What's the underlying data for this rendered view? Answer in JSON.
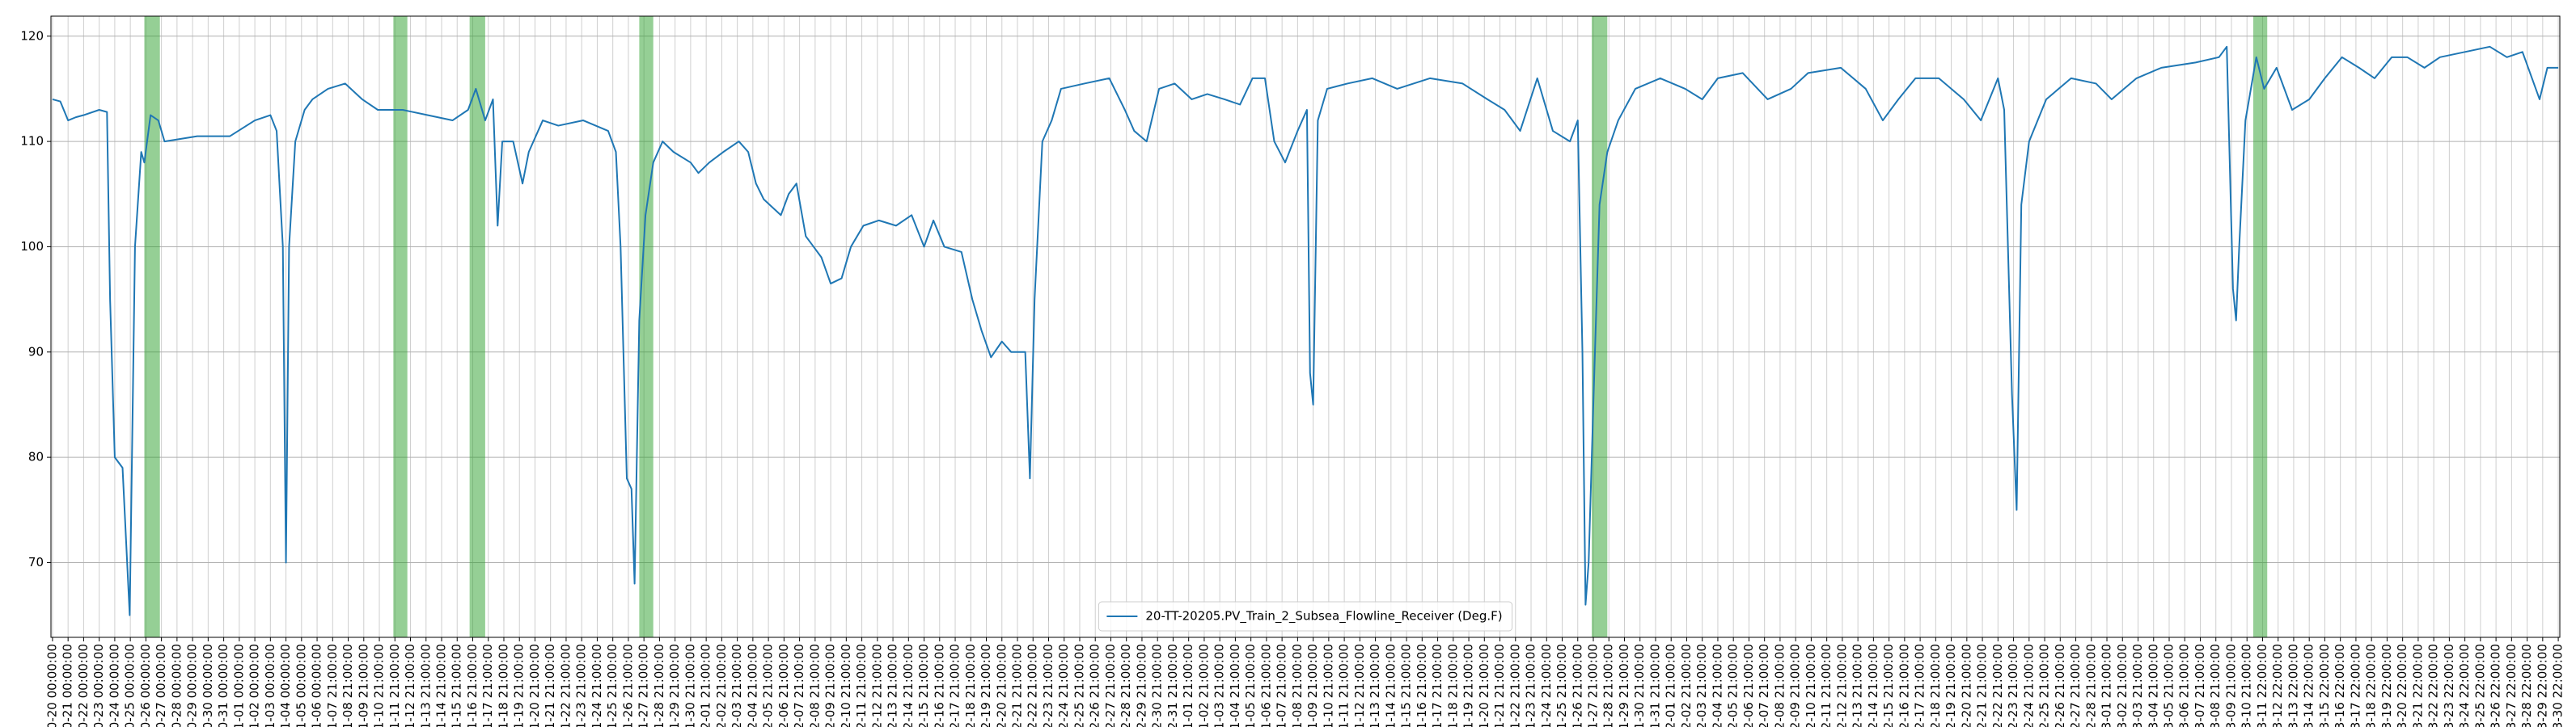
{
  "chart_data": {
    "type": "line",
    "series": [
      {
        "name": "20-TT-20205.PV_Train_2_Subsea_Flowline_Receiver (Deg.F)",
        "color": "#1f77b4",
        "x": [
          0,
          0.5,
          1,
          1.5,
          2,
          3,
          3.5,
          3.7,
          4.0,
          4.5,
          4.96,
          5.3,
          5.7,
          5.9,
          6.3,
          6.8,
          7.2,
          9.3,
          11.4,
          13,
          14,
          14.4,
          14.8,
          15.0,
          15.2,
          15.6,
          16.2,
          16.7,
          17.7,
          18.8,
          19.9,
          20.9,
          22.5,
          24.1,
          25.7,
          26.7,
          27.2,
          27.8,
          28.3,
          28.6,
          28.9,
          29.6,
          30.2,
          30.6,
          31.5,
          32.5,
          34.1,
          35.7,
          36.2,
          36.5,
          36.9,
          37.2,
          37.4,
          37.7,
          38.1,
          38.6,
          39.2,
          39.9,
          41,
          41.5,
          42.2,
          43.1,
          44.1,
          44.7,
          45.2,
          45.7,
          46.8,
          47.3,
          47.8,
          48.4,
          48.9,
          49.4,
          50,
          50.7,
          51.3,
          52.1,
          53.1,
          54.2,
          55.2,
          56,
          56.6,
          57.3,
          58.4,
          59.1,
          59.7,
          60.3,
          61,
          61.6,
          62.1,
          62.5,
          62.8,
          63.1,
          63.6,
          64.2,
          64.8,
          66.3,
          67.9,
          68.9,
          69.5,
          70.3,
          71.1,
          72.1,
          73.2,
          74.2,
          75.3,
          76.3,
          77.1,
          77.9,
          78.5,
          79.2,
          80,
          80.6,
          80.8,
          81,
          81.3,
          81.9,
          83.2,
          84.8,
          86.4,
          88.5,
          90.6,
          92.2,
          93.3,
          94.3,
          95.4,
          96.4,
          97.5,
          98,
          98.3,
          98.5,
          98.7,
          99,
          99.4,
          99.9,
          100.6,
          101.7,
          103.3,
          104.9,
          106,
          107,
          108.6,
          110.2,
          111.7,
          112.8,
          114.9,
          116.5,
          117.6,
          118.6,
          119.7,
          121.2,
          122.8,
          123.9,
          125,
          125.4,
          125.9,
          126.2,
          126.5,
          127,
          128.1,
          129.7,
          131.3,
          132.3,
          133.9,
          135.5,
          137.7,
          139.2,
          139.7,
          140.1,
          140.3,
          140.5,
          140.9,
          141.6,
          142.1,
          142.9,
          143.9,
          145,
          146,
          147.1,
          148.2,
          149.2,
          150.3,
          151.3,
          152.4,
          153.4,
          155,
          156.6,
          157.7,
          158.7,
          159.8,
          160.3,
          161
        ],
        "values": [
          114,
          113.8,
          112,
          112.3,
          112.5,
          113,
          112.8,
          95,
          80,
          79,
          65,
          100,
          109,
          108,
          112.5,
          112,
          110,
          110.5,
          110.5,
          112,
          112.5,
          111,
          100,
          70,
          100,
          110,
          113,
          114,
          115,
          115.5,
          114,
          113,
          113,
          112.5,
          112,
          113,
          115,
          112,
          114,
          102,
          110,
          110,
          106,
          109,
          112,
          111.5,
          112,
          111,
          109,
          100,
          78,
          77,
          68,
          93,
          103,
          108,
          110,
          109,
          108,
          107,
          108,
          109,
          110,
          109,
          106,
          104.5,
          103,
          105,
          106,
          101,
          100,
          99,
          96.5,
          97,
          100,
          102,
          102.5,
          102,
          103,
          100,
          102.5,
          100,
          99.5,
          95,
          92,
          89.5,
          91,
          90,
          90,
          90,
          78,
          95,
          110,
          112,
          115,
          115.5,
          116,
          113,
          111,
          110,
          115,
          115.5,
          114,
          114.5,
          114,
          113.5,
          116,
          116,
          110,
          108,
          111,
          113,
          88,
          85,
          112,
          115,
          115.5,
          116,
          115,
          116,
          115.5,
          114,
          113,
          111,
          116,
          111,
          110,
          112,
          90,
          66,
          70,
          85,
          104,
          109,
          112,
          115,
          116,
          115,
          114,
          116,
          116.5,
          114,
          115,
          116.5,
          117,
          115,
          112,
          114,
          116,
          116,
          114,
          112,
          116,
          113,
          86,
          75,
          104,
          110,
          114,
          116,
          115.5,
          114,
          116,
          117,
          117.5,
          118,
          119,
          96,
          93,
          100,
          112,
          118,
          115,
          117,
          113,
          114,
          116,
          118,
          117,
          116,
          118,
          118,
          117,
          118,
          118.5,
          119,
          118,
          118.5,
          114,
          117,
          117
        ]
      }
    ],
    "spans": [
      [
        5.9,
        6.9
      ],
      [
        21.9,
        22.8
      ],
      [
        26.8,
        27.8
      ],
      [
        37.7,
        38.6
      ],
      [
        98.9,
        99.9
      ],
      [
        141.4,
        142.3
      ]
    ],
    "span_color": "#2ca02c",
    "xlim": [
      -0.1,
      161.1
    ],
    "ylim": [
      62.9,
      121.9
    ],
    "yticks": [
      70,
      80,
      90,
      100,
      110,
      120
    ],
    "grid": true,
    "legend": "lower center",
    "xticks": [
      {
        "value": 0,
        "label": "0-20 00:00:00"
      },
      {
        "value": 1,
        "label": "0-21 00:00:00"
      },
      {
        "value": 2,
        "label": "0-22 00:00:00"
      },
      {
        "value": 3,
        "label": "0-23 00:00:00"
      },
      {
        "value": 4,
        "label": "0-24 00:00:00"
      },
      {
        "value": 5,
        "label": "0-25 00:00:00"
      },
      {
        "value": 6,
        "label": "0-26 00:00:00"
      },
      {
        "value": 7,
        "label": "0-27 00:00:00"
      },
      {
        "value": 8,
        "label": "0-28 00:00:00"
      },
      {
        "value": 9,
        "label": "0-29 00:00:00"
      },
      {
        "value": 10,
        "label": "0-30 00:00:00"
      },
      {
        "value": 11,
        "label": "0-31 00:00:00"
      },
      {
        "value": 12,
        "label": "1-01 00:00:00"
      },
      {
        "value": 13,
        "label": "1-02 00:00:00"
      },
      {
        "value": 14,
        "label": "1-03 00:00:00"
      },
      {
        "value": 15,
        "label": "1-04 00:00:00"
      },
      {
        "value": 16,
        "label": "1-05 00:00:00"
      },
      {
        "value": 17,
        "label": "1-06 00:00:00"
      },
      {
        "value": 18,
        "label": "1-07 21:00:00"
      },
      {
        "value": 19,
        "label": "1-08 21:00:00"
      },
      {
        "value": 20,
        "label": "1-09 21:00:00"
      },
      {
        "value": 21,
        "label": "1-10 21:00:00"
      },
      {
        "value": 22,
        "label": "1-11 21:00:00"
      },
      {
        "value": 23,
        "label": "1-12 21:00:00"
      },
      {
        "value": 24,
        "label": "1-13 21:00:00"
      },
      {
        "value": 25,
        "label": "1-14 21:00:00"
      },
      {
        "value": 26,
        "label": "1-15 21:00:00"
      },
      {
        "value": 27,
        "label": "1-16 21:00:00"
      },
      {
        "value": 28,
        "label": "1-17 21:00:00"
      },
      {
        "value": 29,
        "label": "1-18 21:00:00"
      },
      {
        "value": 30,
        "label": "1-19 21:00:00"
      },
      {
        "value": 31,
        "label": "1-20 21:00:00"
      },
      {
        "value": 32,
        "label": "1-21 21:00:00"
      },
      {
        "value": 33,
        "label": "1-22 21:00:00"
      },
      {
        "value": 34,
        "label": "1-23 21:00:00"
      },
      {
        "value": 35,
        "label": "1-24 21:00:00"
      },
      {
        "value": 36,
        "label": "1-25 21:00:00"
      },
      {
        "value": 37,
        "label": "1-26 21:00:00"
      },
      {
        "value": 38,
        "label": "1-27 21:00:00"
      },
      {
        "value": 39,
        "label": "1-28 21:00:00"
      },
      {
        "value": 40,
        "label": "1-29 21:00:00"
      },
      {
        "value": 41,
        "label": "1-30 21:00:00"
      },
      {
        "value": 42,
        "label": "2-01 21:00:00"
      },
      {
        "value": 43,
        "label": "2-02 21:00:00"
      },
      {
        "value": 44,
        "label": "2-03 21:00:00"
      },
      {
        "value": 45,
        "label": "2-04 21:00:00"
      },
      {
        "value": 46,
        "label": "2-05 21:00:00"
      },
      {
        "value": 47,
        "label": "2-06 21:00:00"
      },
      {
        "value": 48,
        "label": "2-07 21:00:00"
      },
      {
        "value": 49,
        "label": "2-08 21:00:00"
      },
      {
        "value": 50,
        "label": "2-09 21:00:00"
      },
      {
        "value": 51,
        "label": "2-10 21:00:00"
      },
      {
        "value": 52,
        "label": "2-11 21:00:00"
      },
      {
        "value": 53,
        "label": "2-12 21:00:00"
      },
      {
        "value": 54,
        "label": "2-13 21:00:00"
      },
      {
        "value": 55,
        "label": "2-14 21:00:00"
      },
      {
        "value": 56,
        "label": "2-15 21:00:00"
      },
      {
        "value": 57,
        "label": "2-16 21:00:00"
      },
      {
        "value": 58,
        "label": "2-17 21:00:00"
      },
      {
        "value": 59,
        "label": "2-18 21:00:00"
      },
      {
        "value": 60,
        "label": "2-19 21:00:00"
      },
      {
        "value": 61,
        "label": "2-20 21:00:00"
      },
      {
        "value": 62,
        "label": "2-21 21:00:00"
      },
      {
        "value": 63,
        "label": "2-22 21:00:00"
      },
      {
        "value": 64,
        "label": "2-23 21:00:00"
      },
      {
        "value": 65,
        "label": "2-24 21:00:00"
      },
      {
        "value": 66,
        "label": "2-25 21:00:00"
      },
      {
        "value": 67,
        "label": "2-26 21:00:00"
      },
      {
        "value": 68,
        "label": "2-27 21:00:00"
      },
      {
        "value": 69,
        "label": "2-28 21:00:00"
      },
      {
        "value": 70,
        "label": "2-29 21:00:00"
      },
      {
        "value": 71,
        "label": "2-30 21:00:00"
      },
      {
        "value": 72,
        "label": "2-31 21:00:00"
      },
      {
        "value": 73,
        "label": "1-01 21:00:00"
      },
      {
        "value": 74,
        "label": "1-02 21:00:00"
      },
      {
        "value": 75,
        "label": "1-03 21:00:00"
      },
      {
        "value": 76,
        "label": "1-04 21:00:00"
      },
      {
        "value": 77,
        "label": "1-05 21:00:00"
      },
      {
        "value": 78,
        "label": "1-06 21:00:00"
      },
      {
        "value": 79,
        "label": "1-07 21:00:00"
      },
      {
        "value": 80,
        "label": "1-08 21:00:00"
      },
      {
        "value": 81,
        "label": "1-09 21:00:00"
      },
      {
        "value": 82,
        "label": "1-10 21:00:00"
      },
      {
        "value": 83,
        "label": "1-11 21:00:00"
      },
      {
        "value": 84,
        "label": "1-12 21:00:00"
      },
      {
        "value": 85,
        "label": "1-13 21:00:00"
      },
      {
        "value": 86,
        "label": "1-14 21:00:00"
      },
      {
        "value": 87,
        "label": "1-15 21:00:00"
      },
      {
        "value": 88,
        "label": "1-16 21:00:00"
      },
      {
        "value": 89,
        "label": "1-17 21:00:00"
      },
      {
        "value": 90,
        "label": "1-18 21:00:00"
      },
      {
        "value": 91,
        "label": "1-19 21:00:00"
      },
      {
        "value": 92,
        "label": "1-20 21:00:00"
      },
      {
        "value": 93,
        "label": "1-21 21:00:00"
      },
      {
        "value": 94,
        "label": "1-22 21:00:00"
      },
      {
        "value": 95,
        "label": "1-23 21:00:00"
      },
      {
        "value": 96,
        "label": "1-24 21:00:00"
      },
      {
        "value": 97,
        "label": "1-25 21:00:00"
      },
      {
        "value": 98,
        "label": "1-26 21:00:00"
      },
      {
        "value": 99,
        "label": "1-27 21:00:00"
      },
      {
        "value": 100,
        "label": "1-28 21:00:00"
      },
      {
        "value": 101,
        "label": "1-29 21:00:00"
      },
      {
        "value": 102,
        "label": "1-30 21:00:00"
      },
      {
        "value": 103,
        "label": "1-31 21:00:00"
      },
      {
        "value": 104,
        "label": "2-01 21:00:00"
      },
      {
        "value": 105,
        "label": "2-02 21:00:00"
      },
      {
        "value": 106,
        "label": "2-03 21:00:00"
      },
      {
        "value": 107,
        "label": "2-04 21:00:00"
      },
      {
        "value": 108,
        "label": "2-05 21:00:00"
      },
      {
        "value": 109,
        "label": "2-06 21:00:00"
      },
      {
        "value": 110,
        "label": "2-07 21:00:00"
      },
      {
        "value": 111,
        "label": "2-08 21:00:00"
      },
      {
        "value": 112,
        "label": "2-09 21:00:00"
      },
      {
        "value": 113,
        "label": "2-10 21:00:00"
      },
      {
        "value": 114,
        "label": "2-11 21:00:00"
      },
      {
        "value": 115,
        "label": "2-12 21:00:00"
      },
      {
        "value": 116,
        "label": "2-13 21:00:00"
      },
      {
        "value": 117,
        "label": "2-14 21:00:00"
      },
      {
        "value": 118,
        "label": "2-15 21:00:00"
      },
      {
        "value": 119,
        "label": "2-16 21:00:00"
      },
      {
        "value": 120,
        "label": "2-17 21:00:00"
      },
      {
        "value": 121,
        "label": "2-18 21:00:00"
      },
      {
        "value": 122,
        "label": "2-19 21:00:00"
      },
      {
        "value": 123,
        "label": "2-20 21:00:00"
      },
      {
        "value": 124,
        "label": "2-21 21:00:00"
      },
      {
        "value": 125,
        "label": "2-22 21:00:00"
      },
      {
        "value": 126,
        "label": "2-23 21:00:00"
      },
      {
        "value": 127,
        "label": "2-24 21:00:00"
      },
      {
        "value": 128,
        "label": "2-25 21:00:00"
      },
      {
        "value": 129,
        "label": "2-26 21:00:00"
      },
      {
        "value": 130,
        "label": "2-27 21:00:00"
      },
      {
        "value": 131,
        "label": "2-28 21:00:00"
      },
      {
        "value": 132,
        "label": "3-01 21:00:00"
      },
      {
        "value": 133,
        "label": "3-02 21:00:00"
      },
      {
        "value": 134,
        "label": "3-03 21:00:00"
      },
      {
        "value": 135,
        "label": "3-04 21:00:00"
      },
      {
        "value": 136,
        "label": "3-05 21:00:00"
      },
      {
        "value": 137,
        "label": "3-06 21:00:00"
      },
      {
        "value": 138,
        "label": "3-07 21:00:00"
      },
      {
        "value": 139,
        "label": "3-08 21:00:00"
      },
      {
        "value": 140,
        "label": "3-09 21:00:00"
      },
      {
        "value": 141,
        "label": "3-10 21:00:00"
      },
      {
        "value": 142,
        "label": "3-11 22:00:00"
      },
      {
        "value": 143,
        "label": "3-12 22:00:00"
      },
      {
        "value": 144,
        "label": "3-13 22:00:00"
      },
      {
        "value": 145,
        "label": "3-14 22:00:00"
      },
      {
        "value": 146,
        "label": "3-15 22:00:00"
      },
      {
        "value": 147,
        "label": "3-16 22:00:00"
      },
      {
        "value": 148,
        "label": "3-17 22:00:00"
      },
      {
        "value": 149,
        "label": "3-18 22:00:00"
      },
      {
        "value": 150,
        "label": "3-19 22:00:00"
      },
      {
        "value": 151,
        "label": "3-20 22:00:00"
      },
      {
        "value": 152,
        "label": "3-21 22:00:00"
      },
      {
        "value": 153,
        "label": "3-22 22:00:00"
      },
      {
        "value": 154,
        "label": "3-23 22:00:00"
      },
      {
        "value": 155,
        "label": "3-24 22:00:00"
      },
      {
        "value": 156,
        "label": "3-25 22:00:00"
      },
      {
        "value": 157,
        "label": "3-26 22:00:00"
      },
      {
        "value": 158,
        "label": "3-27 22:00:00"
      },
      {
        "value": 159,
        "label": "3-28 22:00:00"
      },
      {
        "value": 160,
        "label": "3-29 22:00:00"
      },
      {
        "value": 161,
        "label": "3-30 22:00:00"
      }
    ]
  }
}
